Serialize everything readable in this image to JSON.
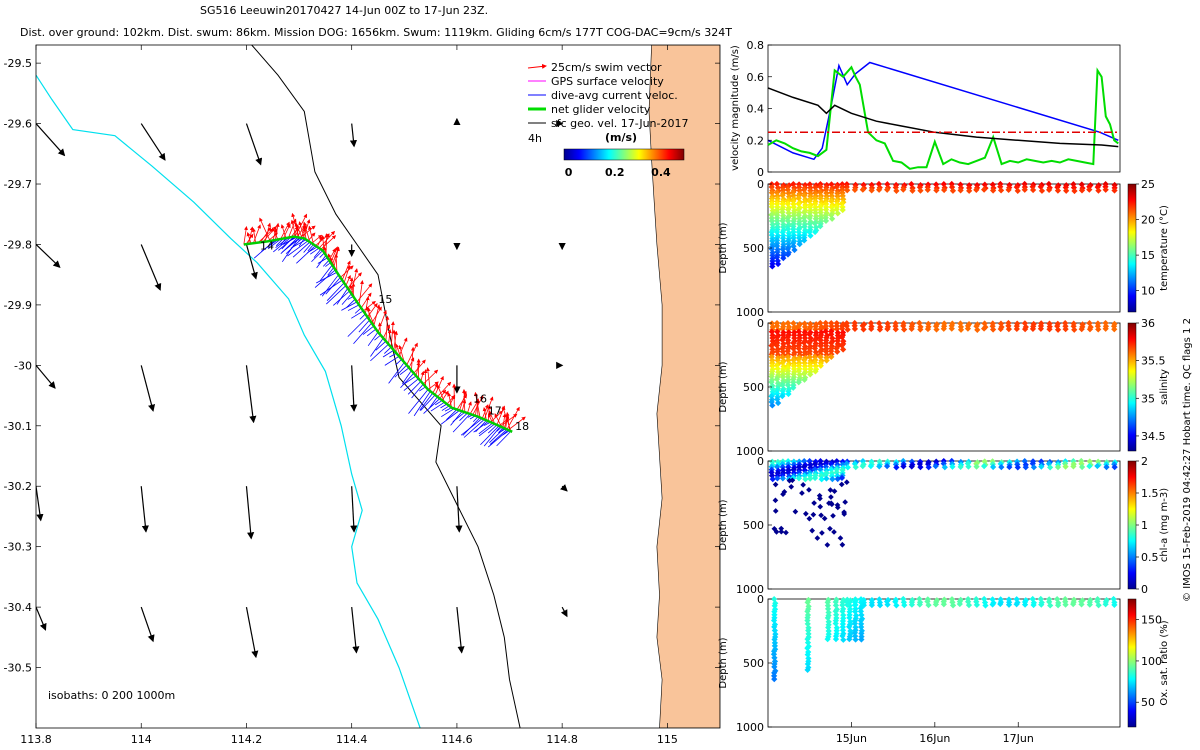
{
  "title": {
    "line1": "SG516 Leeuwin20170427 14-Jun 00Z to 17-Jun 23Z.",
    "line2": "Dist. over ground: 102km. Dist. swum: 86km. Mission DOG: 1656km. Swum: 1119km. Gliding 6cm/s 177T COG-DAC=9cm/s 324T"
  },
  "side_label": "© IMOS 15-Feb-2019 04:42:27 Hobart time. QC flags 1  2",
  "colors": {
    "land": "#f9c49a",
    "coast": "#000000",
    "isobath": "#00e0ee",
    "swim": "#ff0000",
    "gps": "#ff00ff",
    "dac": "#0000ff",
    "net": "#00dd00",
    "geo": "#000000",
    "ref": "#e00000"
  },
  "chart_data": [
    {
      "id": "map",
      "type": "scatter",
      "xlim": [
        113.8,
        115.1
      ],
      "ylim": [
        -30.6,
        -29.47
      ],
      "xticks": [
        "113.8",
        "114",
        "114.2",
        "114.4",
        "114.6",
        "114.8",
        "115"
      ],
      "yticks": [
        "-29.5",
        "-29.6",
        "-29.7",
        "-29.8",
        "-29.9",
        "-30",
        "-30.1",
        "-30.2",
        "-30.3",
        "-30.4",
        "-30.5"
      ],
      "xtick_values": [
        113.8,
        114.0,
        114.2,
        114.4,
        114.6,
        114.8,
        115.0
      ],
      "ytick_values": [
        -29.5,
        -29.6,
        -29.7,
        -29.8,
        -29.9,
        -30.0,
        -30.1,
        -30.2,
        -30.3,
        -30.4,
        -30.5
      ],
      "legend": {
        "items": [
          {
            "label": "25cm/s swim vector",
            "color": "#ff0000"
          },
          {
            "label": "GPS surface velocity",
            "color": "#ff00ff"
          },
          {
            "label": "dive-avg current veloc.",
            "color": "#0000ff"
          },
          {
            "label": "net glider velocity",
            "color": "#00dd00"
          },
          {
            "label": "sfc geo. vel. 17-Jun-2017",
            "color": "#000000"
          }
        ],
        "scale_label": "4h",
        "unit": "(m/s)",
        "ticks": [
          "0",
          "0.2",
          "0.4"
        ],
        "tick_values": [
          0,
          0.2,
          0.4
        ],
        "range": [
          -0.02,
          0.5
        ]
      },
      "isobaths_label": "isobaths: 0   200   1000m",
      "day_labels": [
        {
          "text": "14",
          "lon": 114.22,
          "lat": -29.802
        },
        {
          "text": "15",
          "lon": 114.445,
          "lat": -29.89
        },
        {
          "text": "16",
          "lon": 114.625,
          "lat": -30.055
        },
        {
          "text": "17",
          "lon": 114.653,
          "lat": -30.075
        },
        {
          "text": "18",
          "lon": 114.705,
          "lat": -30.1
        }
      ],
      "track": [
        [
          114.195,
          -29.8
        ],
        [
          114.24,
          -29.795
        ],
        [
          114.29,
          -29.787
        ],
        [
          114.31,
          -29.79
        ],
        [
          114.345,
          -29.81
        ],
        [
          114.375,
          -29.85
        ],
        [
          114.41,
          -29.895
        ],
        [
          114.45,
          -29.945
        ],
        [
          114.5,
          -29.995
        ],
        [
          114.545,
          -30.04
        ],
        [
          114.59,
          -30.07
        ],
        [
          114.64,
          -30.085
        ],
        [
          114.68,
          -30.1
        ],
        [
          114.705,
          -30.11
        ]
      ],
      "isobath_200": [
        [
          113.8,
          -29.52
        ],
        [
          113.83,
          -29.56
        ],
        [
          113.87,
          -29.61
        ],
        [
          113.95,
          -29.62
        ],
        [
          114.02,
          -29.67
        ],
        [
          114.1,
          -29.73
        ],
        [
          114.17,
          -29.79
        ],
        [
          114.22,
          -29.83
        ],
        [
          114.28,
          -29.89
        ],
        [
          114.31,
          -29.95
        ],
        [
          114.35,
          -30.01
        ],
        [
          114.38,
          -30.1
        ],
        [
          114.4,
          -30.18
        ],
        [
          114.42,
          -30.24
        ],
        [
          114.4,
          -30.3
        ],
        [
          114.41,
          -30.36
        ],
        [
          114.45,
          -30.42
        ],
        [
          114.49,
          -30.5
        ],
        [
          114.53,
          -30.6
        ]
      ],
      "isobath_1000": [
        [
          114.21,
          -29.47
        ],
        [
          114.26,
          -29.52
        ],
        [
          114.31,
          -29.58
        ],
        [
          114.33,
          -29.68
        ],
        [
          114.37,
          -29.75
        ],
        [
          114.41,
          -29.8
        ],
        [
          114.45,
          -29.85
        ],
        [
          114.47,
          -29.94
        ],
        [
          114.49,
          -30.02
        ],
        [
          114.53,
          -30.06
        ],
        [
          114.57,
          -30.1
        ],
        [
          114.56,
          -30.16
        ],
        [
          114.6,
          -30.23
        ],
        [
          114.64,
          -30.3
        ],
        [
          114.67,
          -30.38
        ],
        [
          114.69,
          -30.45
        ],
        [
          114.7,
          -30.52
        ],
        [
          114.72,
          -30.6
        ]
      ],
      "coast": [
        [
          115.1,
          -29.47
        ],
        [
          114.97,
          -29.47
        ],
        [
          114.965,
          -29.58
        ],
        [
          114.97,
          -29.66
        ],
        [
          114.975,
          -29.73
        ],
        [
          114.98,
          -29.8
        ],
        [
          114.99,
          -29.9
        ],
        [
          114.99,
          -30.0
        ],
        [
          114.98,
          -30.08
        ],
        [
          114.985,
          -30.15
        ],
        [
          114.99,
          -30.22
        ],
        [
          114.98,
          -30.3
        ],
        [
          114.985,
          -30.38
        ],
        [
          114.98,
          -30.45
        ],
        [
          114.99,
          -30.52
        ],
        [
          114.985,
          -30.6
        ],
        [
          115.1,
          -30.6
        ]
      ],
      "geo_vectors": {
        "lons": [
          113.8,
          114.0,
          114.2,
          114.4,
          114.6,
          114.8
        ],
        "lats": [
          -29.6,
          -29.8,
          -30.0,
          -30.2,
          -30.4
        ],
        "u": [
          [
            0.12,
            0.1,
            0.06,
            0.01,
            0.0,
            0.0
          ],
          [
            0.1,
            0.08,
            0.04,
            0.0,
            0.0,
            0.0
          ],
          [
            0.08,
            0.05,
            0.03,
            0.01,
            0.0,
            0.0
          ],
          [
            0.02,
            0.02,
            0.02,
            0.01,
            0.01,
            0.02
          ],
          [
            0.04,
            0.05,
            0.04,
            0.02,
            0.02,
            0.02
          ]
        ],
        "v": [
          [
            -0.14,
            -0.16,
            -0.18,
            -0.1,
            0.02,
            0.0
          ],
          [
            -0.1,
            -0.2,
            -0.15,
            -0.05,
            -0.02,
            -0.02
          ],
          [
            -0.1,
            -0.2,
            -0.25,
            -0.2,
            -0.12,
            0.0
          ],
          [
            -0.15,
            -0.2,
            -0.23,
            -0.2,
            -0.2,
            -0.02
          ],
          [
            -0.1,
            -0.15,
            -0.22,
            -0.2,
            -0.2,
            -0.04
          ]
        ]
      }
    },
    {
      "id": "velocity",
      "type": "line",
      "ylabel": "velocity magnitude (m/s)",
      "ylim": [
        0,
        0.8
      ],
      "yticks": [
        "0",
        "0.2",
        "0.4",
        "0.6",
        "0.8"
      ],
      "ytick_values": [
        0,
        0.2,
        0.4,
        0.6,
        0.8
      ],
      "xlim": [
        14,
        18.22
      ],
      "series": [
        {
          "name": "dive-avg current",
          "color": "#0000ff",
          "x": [
            14.0,
            14.3,
            14.55,
            14.65,
            14.75,
            14.85,
            14.95,
            15.05,
            15.22,
            17.98,
            18.2
          ],
          "y": [
            0.2,
            0.12,
            0.08,
            0.15,
            0.4,
            0.67,
            0.55,
            0.62,
            0.69,
            0.25,
            0.2
          ]
        },
        {
          "name": "net glider velocity",
          "color": "#00dd00",
          "x": [
            14.0,
            14.1,
            14.2,
            14.3,
            14.4,
            14.5,
            14.6,
            14.7,
            14.8,
            14.9,
            15.0,
            15.05,
            15.1,
            15.2,
            15.3,
            15.4,
            15.5,
            15.6,
            15.7,
            15.8,
            15.9,
            16.0,
            16.1,
            16.2,
            16.3,
            16.4,
            16.5,
            16.6,
            16.7,
            16.8,
            16.9,
            17.0,
            17.1,
            17.2,
            17.3,
            17.4,
            17.5,
            17.6,
            17.7,
            17.8,
            17.9,
            17.95,
            18.0,
            18.05,
            18.1,
            18.15,
            18.2
          ],
          "y": [
            0.17,
            0.2,
            0.18,
            0.15,
            0.13,
            0.12,
            0.1,
            0.14,
            0.64,
            0.6,
            0.66,
            0.6,
            0.55,
            0.25,
            0.2,
            0.18,
            0.07,
            0.06,
            0.02,
            0.03,
            0.03,
            0.19,
            0.05,
            0.08,
            0.06,
            0.05,
            0.07,
            0.09,
            0.22,
            0.05,
            0.07,
            0.06,
            0.08,
            0.07,
            0.06,
            0.07,
            0.06,
            0.08,
            0.07,
            0.06,
            0.05,
            0.64,
            0.6,
            0.35,
            0.3,
            0.2,
            0.18
          ]
        },
        {
          "name": "sfc geo. vel.",
          "color": "#000000",
          "x": [
            14.0,
            14.3,
            14.6,
            14.7,
            14.8,
            15.0,
            15.3,
            15.6,
            16.0,
            16.5,
            17.0,
            17.5,
            18.0,
            18.2
          ],
          "y": [
            0.53,
            0.47,
            0.42,
            0.37,
            0.42,
            0.37,
            0.32,
            0.29,
            0.25,
            0.22,
            0.2,
            0.18,
            0.17,
            0.16
          ]
        },
        {
          "name": "reference 0.25 m/s",
          "color": "#e00000",
          "style": "dashdot",
          "x": [
            14.0,
            18.2
          ],
          "y": [
            0.25,
            0.25
          ]
        }
      ]
    },
    {
      "id": "temperature",
      "type": "scatter",
      "ylabel": "Depth (m)",
      "ylim": [
        0,
        1000
      ],
      "yticks": [
        "0",
        "500",
        "1000"
      ],
      "ytick_values": [
        0,
        500,
        1000
      ],
      "colorbar_label": "temperature (°C)",
      "colorbar_ticks": [
        "10",
        "15",
        "20",
        "25"
      ],
      "colorbar_values": [
        10,
        15,
        20,
        25
      ],
      "crange": [
        7,
        25
      ],
      "profile_pattern": "deep dives to ~650 m during 14-15 Jun, shallow dives to ~100 m afterwards"
    },
    {
      "id": "salinity",
      "type": "scatter",
      "ylabel": "Depth (m)",
      "ylim": [
        0,
        1000
      ],
      "yticks": [
        "0",
        "500",
        "1000"
      ],
      "ytick_values": [
        0,
        500,
        1000
      ],
      "colorbar_label": "salinity",
      "colorbar_ticks": [
        "34.5",
        "35",
        "35.5",
        "36"
      ],
      "colorbar_values": [
        34.5,
        35,
        35.5,
        36
      ],
      "crange": [
        34.3,
        36
      ]
    },
    {
      "id": "chla",
      "type": "scatter",
      "ylabel": "Depth (m)",
      "ylim": [
        0,
        1000
      ],
      "yticks": [
        "0",
        "500",
        "1000"
      ],
      "ytick_values": [
        0,
        500,
        1000
      ],
      "colorbar_label": "chl-a (mg m-3)",
      "colorbar_ticks": [
        "0",
        "0.5",
        "1",
        "1.5",
        "2"
      ],
      "colorbar_values": [
        0,
        0.5,
        1,
        1.5,
        2
      ],
      "crange": [
        0,
        2
      ]
    },
    {
      "id": "oxygen",
      "type": "scatter",
      "ylabel": "Depth (m)",
      "ylim": [
        0,
        1000
      ],
      "yticks": [
        "0",
        "500",
        "1000"
      ],
      "ytick_values": [
        0,
        500,
        1000
      ],
      "colorbar_label": "Ox. sat. ratio (%)",
      "colorbar_ticks": [
        "50",
        "100",
        "150"
      ],
      "colorbar_values": [
        50,
        100,
        150
      ],
      "crange": [
        20,
        175
      ],
      "xticks": [
        "15Jun",
        "16Jun",
        "17Jun"
      ],
      "xtick_values": [
        15,
        16,
        17
      ]
    }
  ]
}
